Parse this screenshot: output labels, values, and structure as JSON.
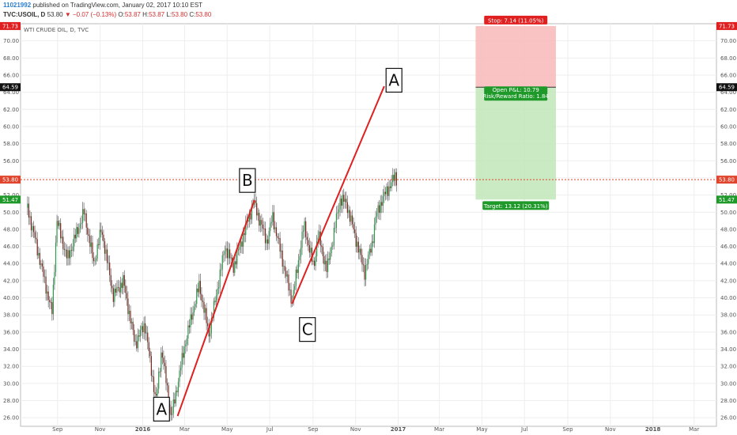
{
  "header": {
    "user": "11021992",
    "published": "published on TradingView.com, January 02, 2017 10:10 EST",
    "symbol": "TVC:USOIL, D",
    "last": "53.80",
    "change_arrow": "▼",
    "change": "−0.07 (−0.13%)",
    "ohlc": [
      {
        "k": "O:",
        "v": "53.87"
      },
      {
        "k": "H:",
        "v": "53.87"
      },
      {
        "k": "L:",
        "v": "53.80"
      },
      {
        "k": "C:",
        "v": "53.80"
      }
    ]
  },
  "colors": {
    "up": "#2e9a4e",
    "down": "#7a2a20",
    "wick": "#666666",
    "trend": "#e02020",
    "stop_zone": "#f9b8b8",
    "target_zone": "#bfe6b8",
    "stop_label": "#e02020",
    "target_label": "#1f9a2a",
    "price_line": "#e0442c"
  },
  "chart_data": {
    "type": "candlestick",
    "title": "WTI CRUDE OIL, D, TVC",
    "ylim": [
      25,
      72
    ],
    "y_ticks": [
      "26.00",
      "28.00",
      "30.00",
      "32.00",
      "34.00",
      "36.00",
      "38.00",
      "40.00",
      "42.00",
      "44.00",
      "46.00",
      "48.00",
      "50.00",
      "52.00",
      "54.00",
      "56.00",
      "58.00",
      "60.00",
      "62.00",
      "64.00",
      "66.00",
      "68.00",
      "70.00"
    ],
    "x_ticks": [
      "Sep",
      "Nov",
      "2016",
      "Mar",
      "May",
      "Jul",
      "Sep",
      "Nov",
      "2017",
      "Mar",
      "May",
      "Jul",
      "Sep",
      "Nov",
      "2018",
      "Mar"
    ],
    "x_ticks_bold": [
      "2016",
      "2017",
      "2018"
    ],
    "price_path": [
      [
        "2015-07-20",
        50.5
      ],
      [
        "2015-08-05",
        45.0
      ],
      [
        "2015-08-24",
        38.2
      ],
      [
        "2015-08-31",
        49.0
      ],
      [
        "2015-09-15",
        44.5
      ],
      [
        "2015-10-09",
        50.0
      ],
      [
        "2015-10-23",
        44.0
      ],
      [
        "2015-11-03",
        48.0
      ],
      [
        "2015-11-20",
        40.2
      ],
      [
        "2015-12-04",
        42.0
      ],
      [
        "2015-12-21",
        34.6
      ],
      [
        "2016-01-04",
        37.0
      ],
      [
        "2016-01-20",
        27.8
      ],
      [
        "2016-01-28",
        34.0
      ],
      [
        "2016-02-11",
        26.0
      ],
      [
        "2016-03-02",
        34.8
      ],
      [
        "2016-03-22",
        41.5
      ],
      [
        "2016-04-05",
        35.7
      ],
      [
        "2016-04-28",
        46.0
      ],
      [
        "2016-05-10",
        43.6
      ],
      [
        "2016-06-08",
        51.2
      ],
      [
        "2016-06-27",
        46.5
      ],
      [
        "2016-07-05",
        49.5
      ],
      [
        "2016-08-02",
        39.5
      ],
      [
        "2016-08-19",
        48.5
      ],
      [
        "2016-09-02",
        43.5
      ],
      [
        "2016-09-08",
        47.5
      ],
      [
        "2016-09-21",
        43.2
      ],
      [
        "2016-10-10",
        51.6
      ],
      [
        "2016-10-19",
        51.0
      ],
      [
        "2016-11-14",
        43.0
      ],
      [
        "2016-11-25",
        46.5
      ],
      [
        "2016-11-30",
        49.5
      ],
      [
        "2016-12-09",
        51.5
      ],
      [
        "2016-12-28",
        54.2
      ],
      [
        "2016-12-30",
        53.8
      ]
    ],
    "current_price": {
      "value": 53.8,
      "label": "53.80"
    },
    "position": {
      "entry": 64.59,
      "stop": 71.73,
      "target": 51.47,
      "stop_text": "Stop: 7.14 (11.05%)",
      "pnl_text": "Open P&L: 10.79",
      "ratio_text": "Risk/Reward Ratio: 1.84",
      "target_text": "Target: 13.12 (20.31%)",
      "entry_label": "64.59",
      "stop_label": "71.73",
      "target_label": "51.47"
    },
    "trend_lines": [
      {
        "from": [
          "2016-02-20",
          26.2
        ],
        "to": [
          "2016-06-09",
          51.4
        ]
      },
      {
        "from": [
          "2016-08-02",
          39.3
        ],
        "to": [
          "2016-12-12",
          64.7
        ]
      }
    ],
    "annotations": [
      {
        "text": "A",
        "at": [
          "2016-01-28",
          27.0
        ]
      },
      {
        "text": "B",
        "at": [
          "2016-05-30",
          53.7
        ]
      },
      {
        "text": "C",
        "at": [
          "2016-08-24",
          36.3
        ]
      },
      {
        "text": "A",
        "at": [
          "2016-12-26",
          65.4
        ]
      }
    ]
  }
}
